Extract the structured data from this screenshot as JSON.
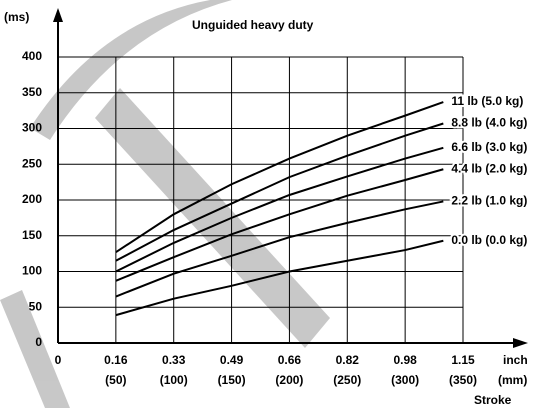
{
  "chart_data": {
    "type": "line",
    "title": "Unguided heavy duty",
    "y_label": "(ms)",
    "x_label": "Stroke",
    "x_unit_inch": "inch",
    "x_unit_mm": "(mm)",
    "x": [
      50,
      100,
      150,
      200,
      250,
      300,
      333
    ],
    "xlim": [
      0,
      350
    ],
    "xticks": [
      0,
      {
        "value": 50,
        "label": "0.16"
      },
      {
        "value": 100,
        "label": "0.33"
      },
      {
        "value": 150,
        "label": "0.49"
      },
      {
        "value": 200,
        "label": "0.66"
      },
      {
        "value": 250,
        "label": "0.82"
      },
      {
        "value": 300,
        "label": "0.98"
      },
      {
        "value": 350,
        "label": "1.15"
      }
    ],
    "xticks_mm": [
      null,
      "(50)",
      "(100)",
      "(150)",
      "(200)",
      "(250)",
      "(300)",
      "(350)"
    ],
    "ylim": [
      0,
      400
    ],
    "yticks": [
      0,
      50,
      100,
      150,
      200,
      250,
      300,
      350,
      400
    ],
    "grid": true,
    "series": [
      {
        "name": "11 lb (5.0 kg)",
        "color": "#000000",
        "values": [
          127,
          180,
          222,
          258,
          290,
          318,
          337
        ]
      },
      {
        "name": "8.8 lb (4.0 kg)",
        "color": "#000000",
        "values": [
          115,
          158,
          195,
          232,
          262,
          290,
          307
        ]
      },
      {
        "name": "6.6 lb (3.0 kg)",
        "color": "#000000",
        "values": [
          100,
          140,
          175,
          207,
          233,
          258,
          273
        ]
      },
      {
        "name": "4.4 lb (2.0 kg)",
        "color": "#000000",
        "values": [
          87,
          120,
          152,
          180,
          206,
          228,
          243
        ]
      },
      {
        "name": "2.2 lb (1.0 kg)",
        "color": "#000000",
        "values": [
          65,
          97,
          122,
          148,
          168,
          187,
          198
        ]
      },
      {
        "name": "0.0  lb (0.0 kg)",
        "color": "#000000",
        "values": [
          39,
          62,
          80,
          100,
          115,
          130,
          143
        ]
      }
    ]
  }
}
